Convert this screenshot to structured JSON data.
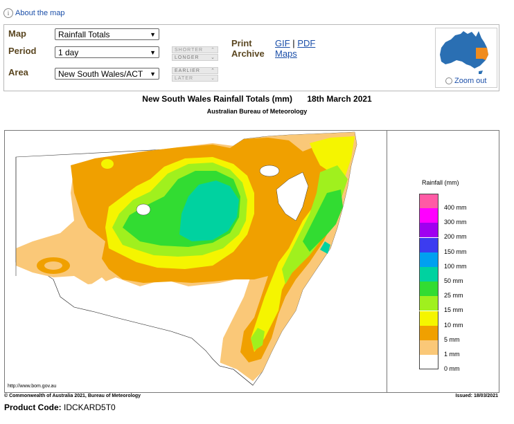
{
  "about": {
    "label": "About the map"
  },
  "controls": {
    "map_label": "Map",
    "map_value": "Rainfall Totals",
    "period_label": "Period",
    "period_value": "1 day",
    "area_label": "Area",
    "area_value": "New South Wales/ACT",
    "shorter": "SHORTER",
    "longer": "LONGER",
    "earlier": "EARLIER",
    "later": "LATER",
    "print_label": "Print",
    "archive_label": "Archive",
    "gif": "GIF",
    "sep": "|",
    "pdf": "PDF",
    "maps": "Maps",
    "zoom_out": "Zoom out"
  },
  "map": {
    "title": "New South Wales Rainfall Totals (mm)",
    "date": "18th March 2021",
    "subtitle": "Australian Bureau of Meteorology",
    "url": "http://www.bom.gov.au",
    "copyright": "© Commonwealth of Australia 2021, Bureau of Meteorology",
    "issued": "Issued: 18/03/2021",
    "legend_title": "Rainfall (mm)",
    "legend": [
      {
        "label": "400 mm",
        "color": "#ff5aa5"
      },
      {
        "label": "300 mm",
        "color": "#ff00ff"
      },
      {
        "label": "200 mm",
        "color": "#a000f0"
      },
      {
        "label": "150 mm",
        "color": "#3c3cf0"
      },
      {
        "label": "100 mm",
        "color": "#00a0f0"
      },
      {
        "label": "50 mm",
        "color": "#00d2a0"
      },
      {
        "label": "25 mm",
        "color": "#32dc32"
      },
      {
        "label": "15 mm",
        "color": "#a0f01e"
      },
      {
        "label": "10 mm",
        "color": "#f5f500"
      },
      {
        "label": "5 mm",
        "color": "#f0a000"
      },
      {
        "label": "1 mm",
        "color": "#fac878"
      },
      {
        "label": "0 mm",
        "color": "#ffffff"
      }
    ]
  },
  "product": {
    "label": "Product Code:",
    "code": "IDCKARD5T0"
  }
}
